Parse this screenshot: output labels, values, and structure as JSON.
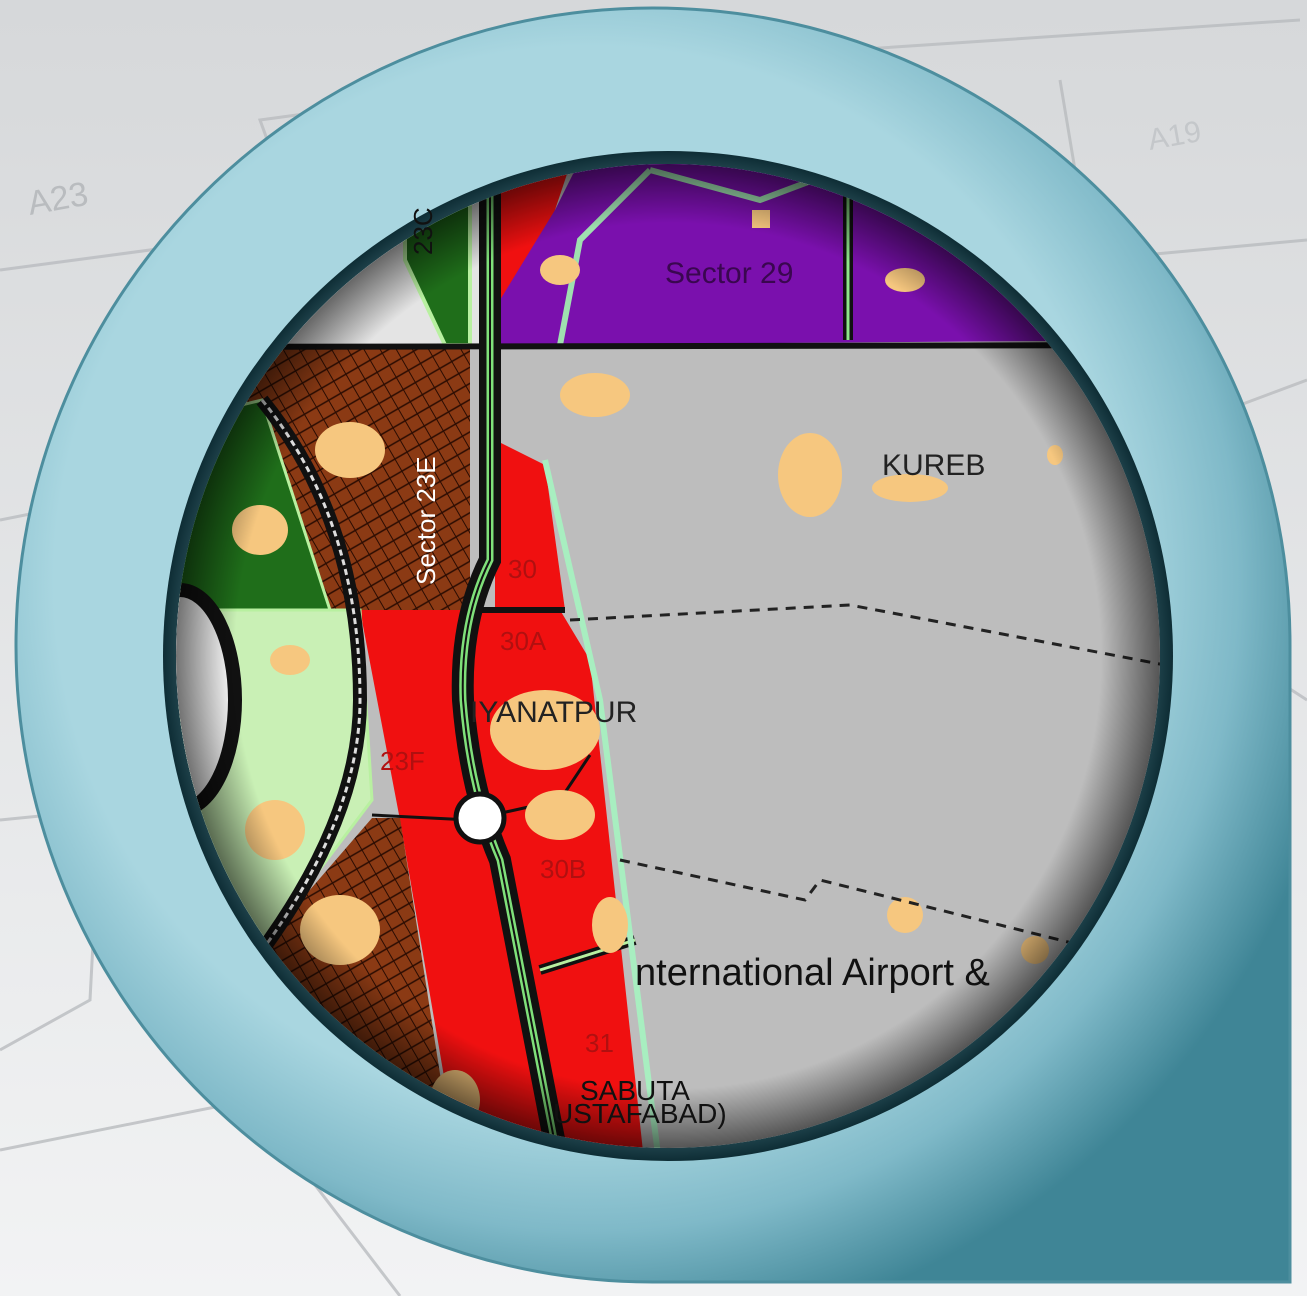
{
  "background_labels": [
    "A23",
    "A19"
  ],
  "labels": [
    "23C",
    "Sector 29",
    "KUREB",
    "Sector 23E",
    "30",
    "30A",
    "IYANATPUR",
    "23F",
    "30B",
    "nternational Airport &",
    "31",
    "SABUTA",
    "USTAFABAD)"
  ]
}
